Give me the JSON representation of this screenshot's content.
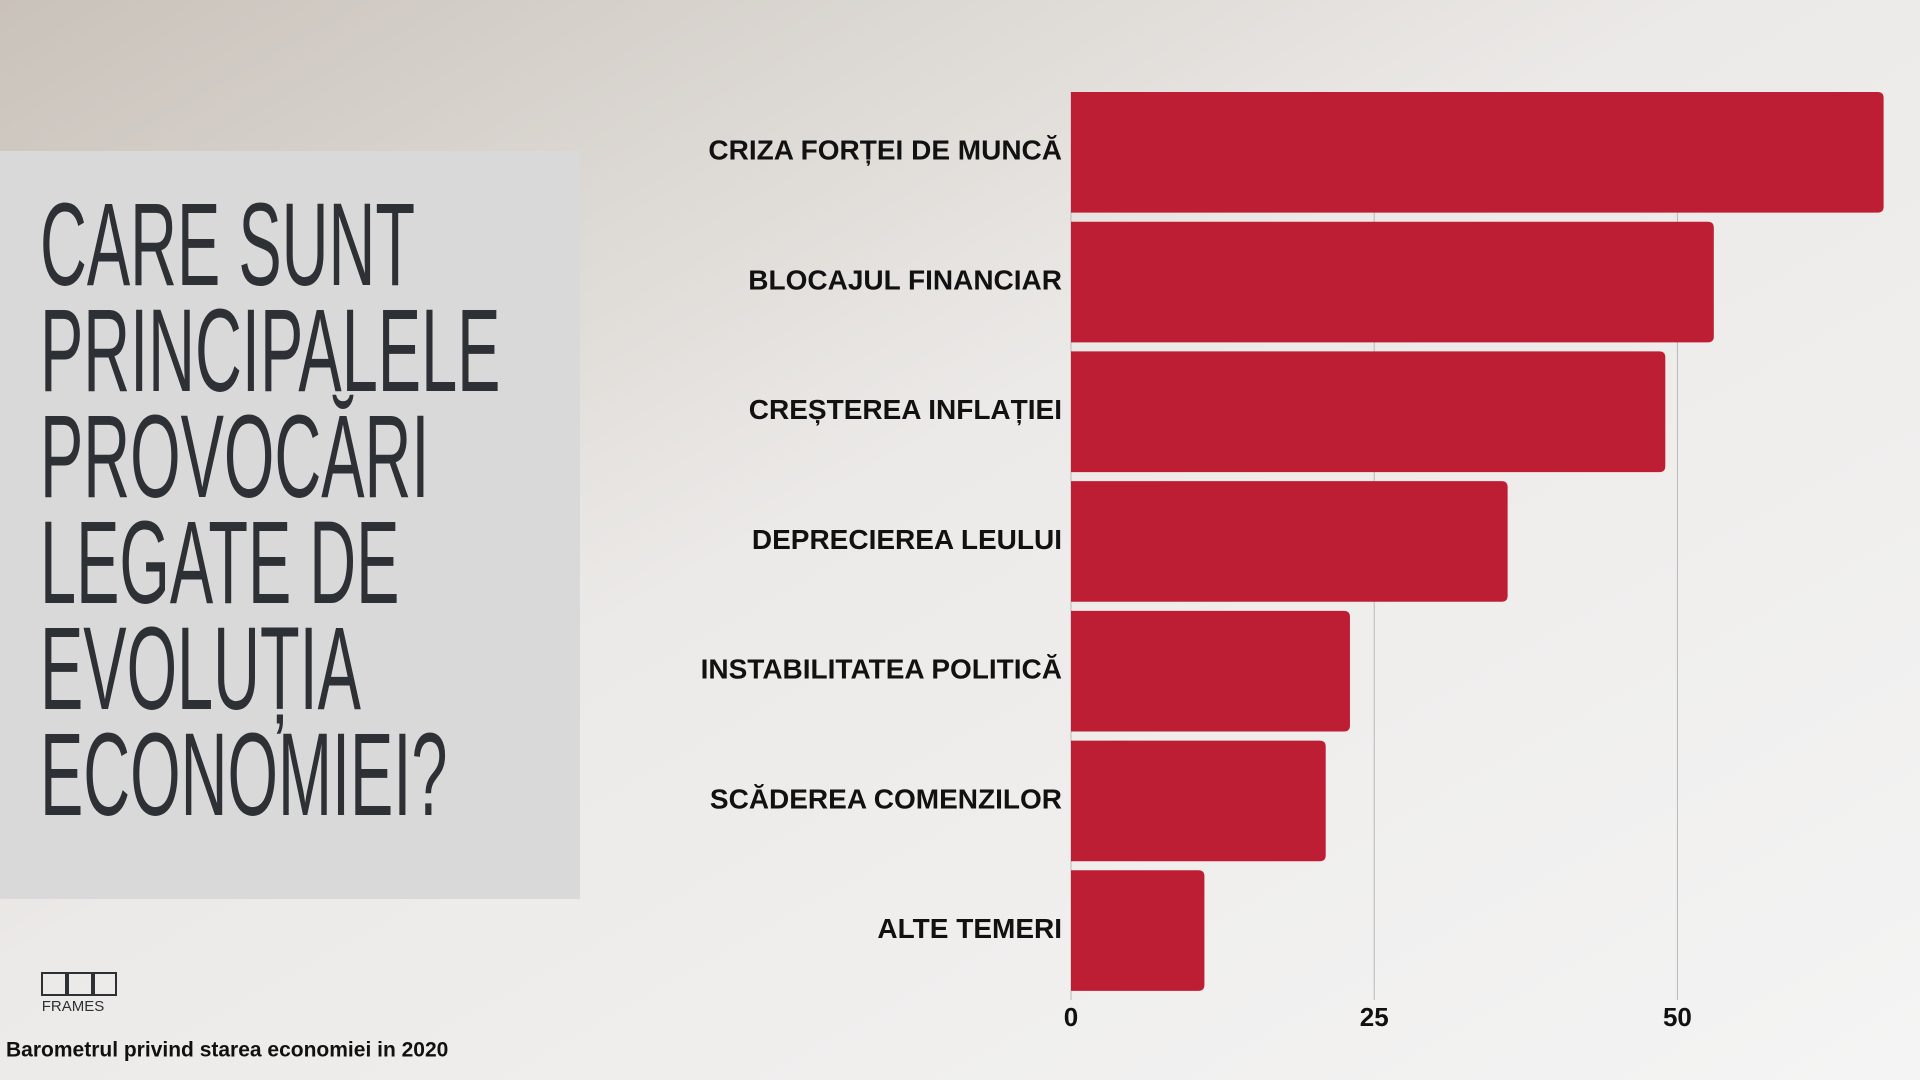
{
  "chart_data": {
    "type": "hbar",
    "title": [
      "CARE SUNT",
      "PRINCIPALELE",
      "PROVOCĂRI",
      "LEGATE DE",
      "EVOLUȚIA",
      "ECONOMIEI?"
    ],
    "categories": [
      "CRIZA FORȚEI DE MUNCĂ",
      "BLOCAJUL FINANCIAR",
      "CREȘTEREA INFLAȚIEI",
      "DEPRECIEREA LEULUI",
      "INSTABILITATEA POLITICĂ",
      "SCĂDEREA COMENZILOR",
      "ALTE TEMERI"
    ],
    "values": [
      67,
      53,
      49,
      36,
      23,
      21,
      11
    ],
    "color": "#be1e33",
    "xlim": [
      0,
      70
    ],
    "xticks": [
      0,
      25,
      50
    ],
    "grid": true
  },
  "source": "Barometrul privind starea economiei in 2020",
  "logo": "FRAMES"
}
